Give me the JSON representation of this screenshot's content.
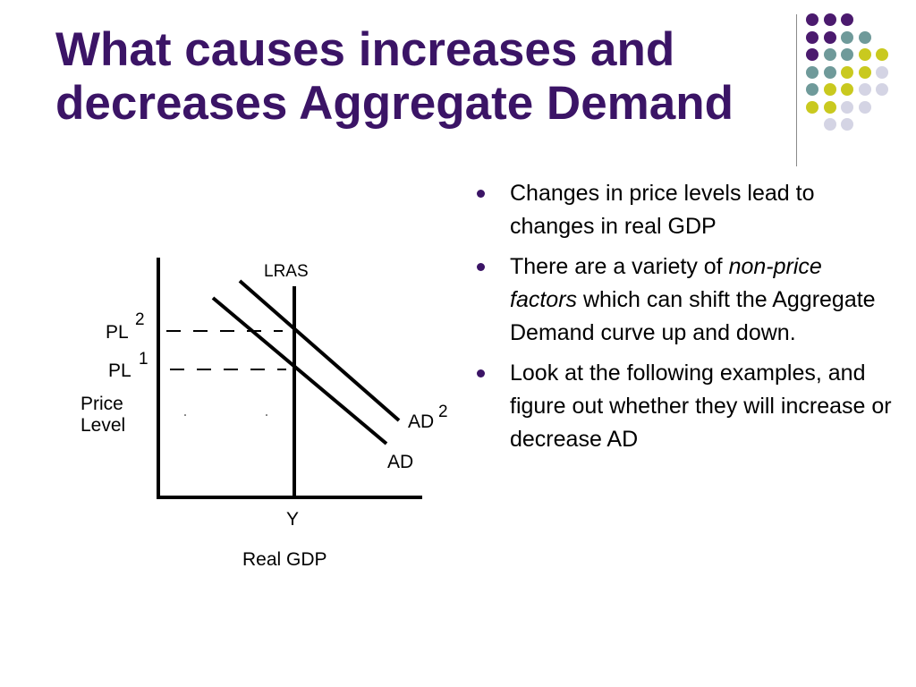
{
  "slide": {
    "title_line1": "What causes increases and",
    "title_line2": "decreases Aggregate Demand"
  },
  "decor": {
    "colors": {
      "purple": "#4b1a6e",
      "teal": "#6f9a9a",
      "yellow": "#c9c91f",
      "lavender": "#d4d4e4",
      "title": "#3b1466",
      "divider": "#8a8a8a"
    },
    "dot_grid": [
      [
        "purple",
        "purple",
        "purple",
        null,
        null
      ],
      [
        "purple",
        "purple",
        "teal",
        "teal",
        null
      ],
      [
        "purple",
        "teal",
        "teal",
        "yellow",
        "yellow"
      ],
      [
        "teal",
        "teal",
        "yellow",
        "yellow",
        "lavender"
      ],
      [
        "teal",
        "yellow",
        "yellow",
        "lavender",
        "lavender"
      ],
      [
        "yellow",
        "yellow",
        "lavender",
        "lavender",
        null
      ],
      [
        null,
        "lavender",
        "lavender",
        null,
        null
      ]
    ]
  },
  "bullets": [
    {
      "text": "Changes in price levels lead to changes in real GDP"
    },
    {
      "text_before": "There are a variety of ",
      "text_italic": "non-price factors",
      "text_after": " which can shift the Aggregate Demand curve up and down."
    },
    {
      "text": "Look at the following examples, and figure out whether they will increase or decrease AD"
    }
  ],
  "graph": {
    "lras_label": "LRAS",
    "pl2_label": "PL",
    "pl2_sup": "2",
    "pl1_label": "PL",
    "pl1_sup": "1",
    "ylabel_line1": "Price",
    "ylabel_line2": "Level",
    "ad2_label": "AD",
    "ad2_sup": "2",
    "ad_label": "AD",
    "y_label": "Y",
    "xlabel": "Real GDP"
  }
}
